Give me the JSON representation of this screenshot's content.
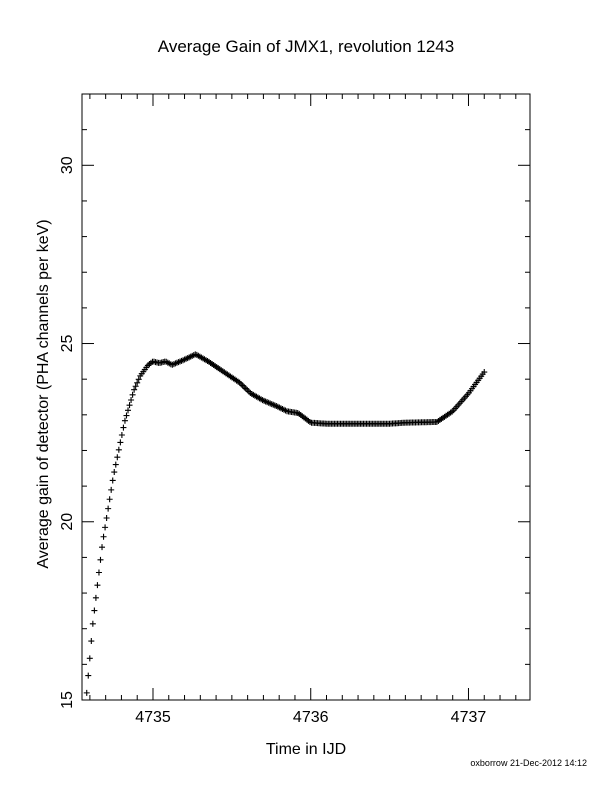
{
  "chart_data": {
    "type": "scatter",
    "title": "Average Gain of JMX1, revolution 1243",
    "xlabel": "Time in IJD",
    "ylabel": "Average gain of detector (PHA channels per keV)",
    "xlim": [
      4734.55,
      4737.39
    ],
    "ylim": [
      15,
      32
    ],
    "x_ticks": [
      4735,
      4736,
      4737
    ],
    "y_ticks": [
      15,
      20,
      25,
      30
    ],
    "grid": false,
    "legend": "none",
    "marker": "plus",
    "color": "#000000",
    "keypoints": {
      "x": [
        4734.58,
        4734.62,
        4734.68,
        4734.75,
        4734.82,
        4734.88,
        4734.92,
        4734.97,
        4735.0,
        4735.04,
        4735.08,
        4735.12,
        4735.2,
        4735.27,
        4735.35,
        4735.45,
        4735.55,
        4735.62,
        4735.7,
        4735.78,
        4735.85,
        4735.92,
        4735.98,
        4736.0,
        4736.1,
        4736.3,
        4736.5,
        4736.6,
        4736.8,
        4736.9,
        4737.0,
        4737.05,
        4737.1
      ],
      "y": [
        15.2,
        17.2,
        19.4,
        21.3,
        22.8,
        23.7,
        24.1,
        24.4,
        24.5,
        24.45,
        24.5,
        24.4,
        24.55,
        24.7,
        24.5,
        24.2,
        23.9,
        23.6,
        23.4,
        23.25,
        23.1,
        23.05,
        22.85,
        22.78,
        22.75,
        22.75,
        22.75,
        22.78,
        22.8,
        23.1,
        23.6,
        23.9,
        24.2
      ]
    }
  },
  "footer": {
    "credit": "oxborrow 21-Dec-2012 14:12"
  }
}
